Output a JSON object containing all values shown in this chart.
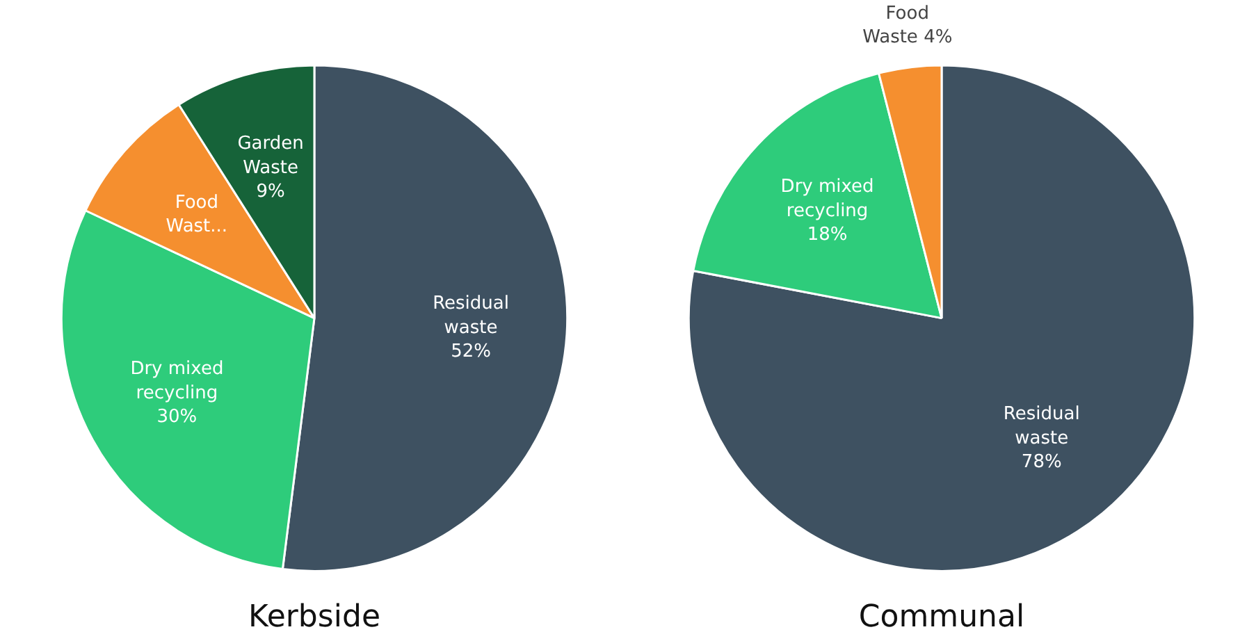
{
  "chart_data": [
    {
      "type": "pie",
      "title": "Kerbside",
      "categories": [
        "Residual waste",
        "Dry mixed recycling",
        "Food Wast...",
        "Garden Waste"
      ],
      "values": [
        52,
        30,
        9,
        9
      ],
      "value_labels": [
        "52%",
        "30%",
        null,
        "9%"
      ],
      "colors": [
        "#3e5161",
        "#2ecc7b",
        "#f58f2f",
        "#166339"
      ]
    },
    {
      "type": "pie",
      "title": "Communal",
      "categories": [
        "Residual waste",
        "Dry mixed recycling",
        "Food Waste"
      ],
      "values": [
        78,
        18,
        4
      ],
      "value_labels": [
        "78%",
        "18%",
        "4%"
      ],
      "colors": [
        "#3e5161",
        "#2ecc7b",
        "#f58f2f"
      ]
    }
  ]
}
